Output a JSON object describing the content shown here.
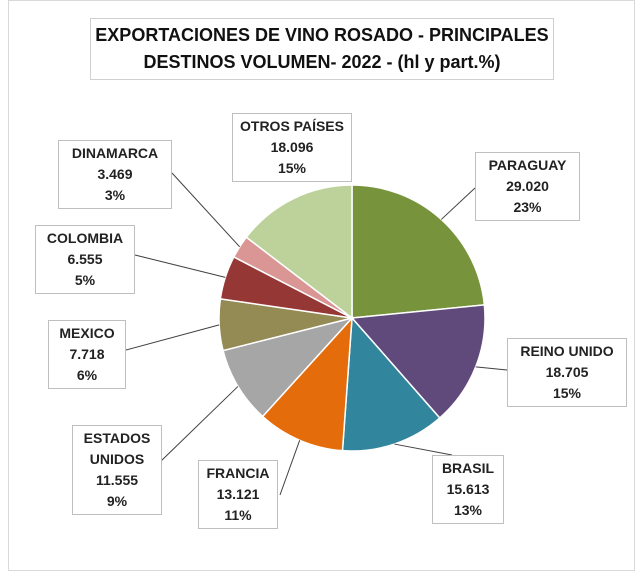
{
  "chart_data": {
    "type": "pie",
    "title": "EXPORTACIONES DE VINO ROSADO - PRINCIPALES DESTINOS VOLUMEN- 2022 - (hl y part.%)",
    "categories": [
      "PARAGUAY",
      "REINO UNIDO",
      "BRASIL",
      "FRANCIA",
      "ESTADOS UNIDOS",
      "MEXICO",
      "COLOMBIA",
      "DINAMARCA",
      "OTROS PAÍSES"
    ],
    "values": [
      29020,
      18705,
      15613,
      13121,
      11555,
      7718,
      6555,
      3469,
      18096
    ],
    "value_labels": [
      "29.020",
      "18.705",
      "15.613",
      "13.121",
      "11.555",
      "7.718",
      "6.555",
      "3.469",
      "18.096"
    ],
    "percents": [
      23,
      15,
      13,
      11,
      9,
      6,
      5,
      3,
      15
    ],
    "percent_labels": [
      "23%",
      "15%",
      "13%",
      "11%",
      "9%",
      "6%",
      "5%",
      "3%",
      "15%"
    ],
    "colors": [
      "#77933c",
      "#604a7b",
      "#31859c",
      "#e46c0a",
      "#a6a6a6",
      "#948a54",
      "#953735",
      "#d99694",
      "#bcd29a"
    ]
  }
}
